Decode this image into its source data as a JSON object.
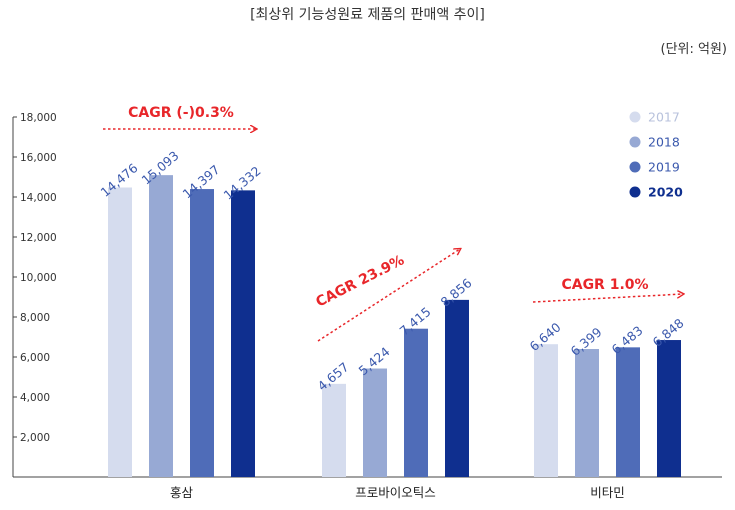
{
  "title": "[최상위 기능성원료 제품의 판매액 추이]",
  "unit": "(단위: 억원)",
  "colors": {
    "2017": "#d5dcee",
    "2018": "#97a9d4",
    "2019": "#4f6cb8",
    "2020": "#0f2f8f",
    "label": "#3b59ad",
    "annotation": "#e8262a",
    "axis": "#444444"
  },
  "chart_data": {
    "type": "bar",
    "categories": [
      "홍삼",
      "프로바이오틱스",
      "비타민"
    ],
    "series": [
      {
        "name": "2017",
        "values": [
          14476,
          4657,
          6640
        ]
      },
      {
        "name": "2018",
        "values": [
          15093,
          5424,
          6399
        ]
      },
      {
        "name": "2019",
        "values": [
          14397,
          7415,
          6483
        ]
      },
      {
        "name": "2020",
        "values": [
          14332,
          8856,
          6848
        ]
      }
    ],
    "data_labels": [
      [
        "14,476",
        "15,093",
        "14,397",
        "14,332"
      ],
      [
        "4,657",
        "5,424",
        "7,415",
        "8,856"
      ],
      [
        "6,640",
        "6,399",
        "6,483",
        "6,848"
      ]
    ],
    "ylim": [
      0,
      18000
    ],
    "yticks": [
      {
        "value": 2000,
        "label": "2,000"
      },
      {
        "value": 4000,
        "label": "4,000"
      },
      {
        "value": 6000,
        "label": "6,000"
      },
      {
        "value": 8000,
        "label": "8,000"
      },
      {
        "value": 10000,
        "label": "10,000"
      },
      {
        "value": 12000,
        "label": "12,000"
      },
      {
        "value": 14000,
        "label": "14,000"
      },
      {
        "value": 16000,
        "label": "16,000"
      },
      {
        "value": 18000,
        "label": "18,000"
      }
    ],
    "annotations": [
      "CAGR (-)0.3%",
      "CAGR 23.9%",
      "CAGR 1.0%"
    ],
    "legend_position": "top-right",
    "grid": false
  }
}
